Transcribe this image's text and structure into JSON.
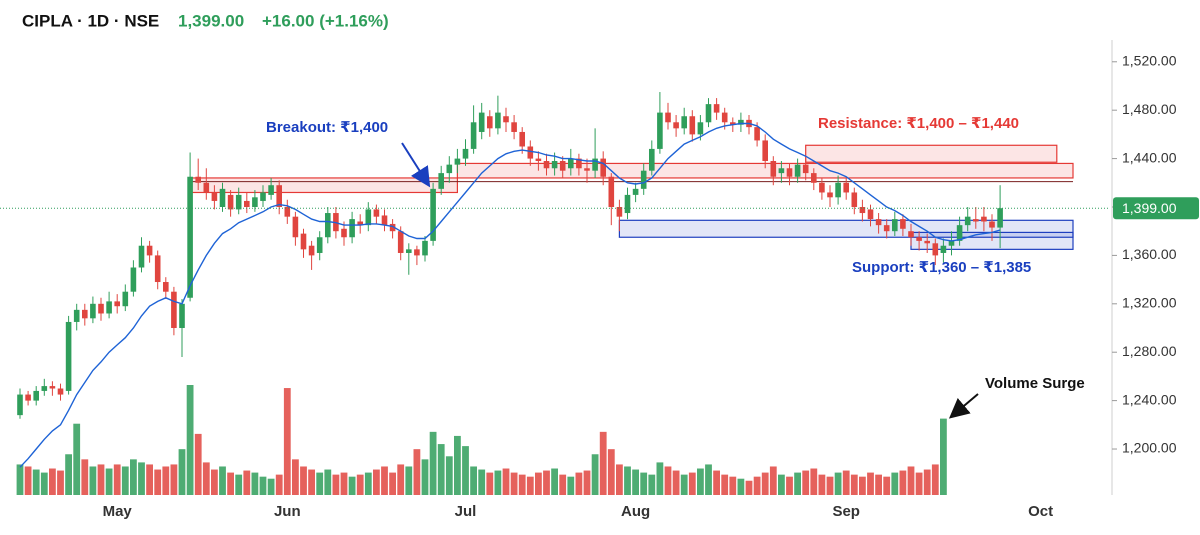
{
  "chart_data": {
    "type": "candlestick",
    "title": "CIPLA · 1D · NSE",
    "last_price": {
      "value": 1399,
      "label": "1,399.00"
    },
    "change": "+16.00 (+1.16%)",
    "up_color": "#2f9e5b",
    "down_color": "#e0453f",
    "ma_color": "#1e63d6",
    "ylim": [
      1162,
      1538
    ],
    "yticks": [
      {
        "value": 1200,
        "label": "1,200.00"
      },
      {
        "value": 1240,
        "label": "1,240.00"
      },
      {
        "value": 1280,
        "label": "1,280.00"
      },
      {
        "value": 1320,
        "label": "1,320.00"
      },
      {
        "value": 1360,
        "label": "1,360.00"
      },
      {
        "value": 1400,
        "label": "1,400.00"
      },
      {
        "value": 1440,
        "label": "1,440.00"
      },
      {
        "value": 1480,
        "label": "1,480.00"
      },
      {
        "value": 1520,
        "label": "1,520.00"
      }
    ],
    "categories": [
      null,
      null,
      null,
      null,
      null,
      null,
      null,
      null,
      null,
      null,
      null,
      null,
      "May",
      null,
      null,
      null,
      null,
      null,
      null,
      null,
      null,
      null,
      null,
      null,
      null,
      null,
      null,
      null,
      null,
      null,
      null,
      null,
      null,
      "Jun",
      null,
      null,
      null,
      null,
      null,
      null,
      null,
      null,
      null,
      null,
      null,
      null,
      null,
      null,
      null,
      null,
      null,
      null,
      null,
      null,
      null,
      "Jul",
      null,
      null,
      null,
      null,
      null,
      null,
      null,
      null,
      null,
      null,
      null,
      null,
      null,
      null,
      null,
      null,
      null,
      null,
      null,
      null,
      "Aug",
      null,
      null,
      null,
      null,
      null,
      null,
      null,
      null,
      null,
      null,
      null,
      null,
      null,
      null,
      null,
      null,
      null,
      null,
      null,
      null,
      null,
      null,
      null,
      null,
      null,
      "Sep",
      null,
      null,
      null,
      null,
      null,
      null,
      null,
      null,
      null,
      null,
      null,
      null,
      null,
      null,
      null,
      null,
      null,
      null,
      null,
      null,
      null,
      null,
      null,
      "Oct",
      null,
      null,
      null,
      null
    ],
    "open": [
      1228,
      1245,
      1240,
      1248,
      1252,
      1250,
      1248,
      1305,
      1315,
      1308,
      1320,
      1312,
      1322,
      1318,
      1330,
      1350,
      1368,
      1360,
      1338,
      1330,
      1300,
      1325,
      1425,
      1420,
      1412,
      1400,
      1410,
      1398,
      1405,
      1400,
      1405,
      1410,
      1418,
      1400,
      1392,
      1378,
      1368,
      1362,
      1375,
      1395,
      1382,
      1375,
      1388,
      1385,
      1398,
      1393,
      1386,
      1380,
      1362,
      1365,
      1360,
      1372,
      1415,
      1428,
      1435,
      1440,
      1448,
      1462,
      1475,
      1465,
      1475,
      1470,
      1462,
      1450,
      1440,
      1438,
      1432,
      1438,
      1432,
      1440,
      1432,
      1430,
      1440,
      1425,
      1400,
      1395,
      1410,
      1415,
      1430,
      1448,
      1478,
      1470,
      1465,
      1475,
      1460,
      1470,
      1485,
      1478,
      1470,
      1468,
      1472,
      1466,
      1455,
      1438,
      1428,
      1432,
      1425,
      1435,
      1428,
      1420,
      1412,
      1408,
      1420,
      1412,
      1400,
      1398,
      1390,
      1385,
      1380,
      1390,
      1380,
      1375,
      1372,
      1370,
      1362,
      1368,
      1372,
      1385,
      1390,
      1392,
      1388,
      1383,
      null,
      null,
      null,
      null,
      null,
      null,
      null,
      null,
      null
    ],
    "high": [
      1250,
      1248,
      1252,
      1258,
      1256,
      1254,
      1310,
      1320,
      1320,
      1326,
      1325,
      1330,
      1328,
      1336,
      1356,
      1375,
      1372,
      1364,
      1342,
      1334,
      1324,
      1445,
      1440,
      1432,
      1418,
      1420,
      1414,
      1416,
      1412,
      1414,
      1418,
      1424,
      1422,
      1406,
      1396,
      1382,
      1372,
      1380,
      1400,
      1400,
      1388,
      1396,
      1394,
      1404,
      1402,
      1398,
      1390,
      1384,
      1370,
      1368,
      1376,
      1420,
      1434,
      1442,
      1448,
      1456,
      1484,
      1486,
      1480,
      1492,
      1482,
      1476,
      1466,
      1455,
      1446,
      1444,
      1445,
      1442,
      1448,
      1444,
      1440,
      1465,
      1446,
      1428,
      1406,
      1416,
      1420,
      1436,
      1455,
      1495,
      1486,
      1476,
      1482,
      1480,
      1476,
      1490,
      1490,
      1482,
      1474,
      1478,
      1476,
      1470,
      1460,
      1442,
      1438,
      1436,
      1440,
      1440,
      1432,
      1424,
      1418,
      1426,
      1424,
      1416,
      1406,
      1402,
      1395,
      1390,
      1396,
      1394,
      1386,
      1380,
      1378,
      1374,
      1374,
      1380,
      1392,
      1400,
      1400,
      1400,
      1394,
      1418,
      null,
      null,
      null,
      null,
      null,
      null,
      null,
      null,
      null
    ],
    "low": [
      1225,
      1236,
      1236,
      1244,
      1244,
      1240,
      1245,
      1298,
      1302,
      1304,
      1306,
      1308,
      1312,
      1314,
      1326,
      1346,
      1354,
      1332,
      1324,
      1294,
      1276,
      1322,
      1414,
      1406,
      1398,
      1396,
      1392,
      1394,
      1395,
      1396,
      1400,
      1406,
      1394,
      1386,
      1368,
      1358,
      1348,
      1356,
      1370,
      1374,
      1368,
      1370,
      1378,
      1380,
      1386,
      1380,
      1374,
      1356,
      1344,
      1352,
      1355,
      1368,
      1410,
      1420,
      1428,
      1434,
      1444,
      1456,
      1458,
      1460,
      1462,
      1456,
      1444,
      1434,
      1430,
      1426,
      1426,
      1424,
      1426,
      1426,
      1420,
      1424,
      1418,
      1385,
      1380,
      1390,
      1404,
      1410,
      1426,
      1444,
      1464,
      1458,
      1460,
      1454,
      1455,
      1466,
      1472,
      1464,
      1462,
      1462,
      1460,
      1450,
      1432,
      1418,
      1420,
      1418,
      1420,
      1422,
      1414,
      1406,
      1400,
      1402,
      1406,
      1394,
      1388,
      1384,
      1378,
      1374,
      1376,
      1376,
      1368,
      1364,
      1362,
      1352,
      1354,
      1360,
      1368,
      1380,
      1382,
      1380,
      1372,
      1366,
      null,
      null,
      null,
      null,
      null,
      null,
      null,
      null,
      null
    ],
    "close": [
      1245,
      1240,
      1248,
      1252,
      1250,
      1245,
      1305,
      1315,
      1308,
      1320,
      1312,
      1322,
      1318,
      1330,
      1350,
      1368,
      1360,
      1338,
      1330,
      1300,
      1320,
      1425,
      1420,
      1412,
      1405,
      1415,
      1398,
      1410,
      1400,
      1408,
      1412,
      1418,
      1400,
      1392,
      1375,
      1365,
      1360,
      1375,
      1395,
      1380,
      1375,
      1390,
      1385,
      1398,
      1392,
      1385,
      1380,
      1362,
      1365,
      1360,
      1372,
      1415,
      1428,
      1435,
      1440,
      1448,
      1470,
      1478,
      1465,
      1478,
      1470,
      1462,
      1450,
      1440,
      1438,
      1432,
      1438,
      1430,
      1440,
      1432,
      1430,
      1440,
      1425,
      1400,
      1392,
      1410,
      1415,
      1430,
      1448,
      1478,
      1470,
      1465,
      1475,
      1460,
      1470,
      1485,
      1478,
      1470,
      1468,
      1472,
      1466,
      1455,
      1438,
      1425,
      1432,
      1425,
      1435,
      1428,
      1420,
      1412,
      1408,
      1420,
      1412,
      1400,
      1395,
      1390,
      1385,
      1380,
      1390,
      1382,
      1375,
      1372,
      1370,
      1360,
      1368,
      1372,
      1385,
      1392,
      1388,
      1388,
      1383,
      1399,
      null,
      null,
      null,
      null,
      null,
      null,
      null,
      null,
      null
    ],
    "volume": [
      30,
      28,
      25,
      22,
      26,
      24,
      40,
      70,
      35,
      28,
      30,
      26,
      30,
      28,
      35,
      32,
      30,
      25,
      28,
      30,
      45,
      108,
      60,
      32,
      25,
      28,
      22,
      20,
      24,
      22,
      18,
      16,
      20,
      105,
      35,
      28,
      25,
      22,
      25,
      20,
      22,
      18,
      20,
      22,
      25,
      28,
      22,
      30,
      28,
      45,
      35,
      62,
      50,
      38,
      58,
      48,
      28,
      25,
      22,
      24,
      26,
      22,
      20,
      18,
      22,
      24,
      26,
      20,
      18,
      22,
      24,
      40,
      62,
      45,
      30,
      28,
      25,
      22,
      20,
      32,
      28,
      24,
      20,
      22,
      26,
      30,
      24,
      20,
      18,
      16,
      14,
      18,
      22,
      28,
      20,
      18,
      22,
      24,
      26,
      20,
      18,
      22,
      24,
      20,
      18,
      22,
      20,
      18,
      22,
      24,
      28,
      22,
      25,
      30,
      75,
      null,
      null,
      null,
      null,
      null,
      null,
      null,
      null,
      null,
      null,
      null,
      null,
      null,
      null,
      null,
      null
    ],
    "ma": [
      1185,
      1192,
      1200,
      1208,
      1215,
      1220,
      1232,
      1245,
      1255,
      1265,
      1272,
      1280,
      1286,
      1292,
      1300,
      1310,
      1318,
      1322,
      1325,
      1322,
      1320,
      1335,
      1348,
      1360,
      1370,
      1378,
      1382,
      1387,
      1390,
      1393,
      1396,
      1400,
      1402,
      1401,
      1398,
      1394,
      1390,
      1388,
      1388,
      1387,
      1385,
      1385,
      1385,
      1386,
      1386,
      1385,
      1384,
      1380,
      1376,
      1374,
      1374,
      1380,
      1388,
      1396,
      1404,
      1412,
      1420,
      1428,
      1434,
      1440,
      1444,
      1446,
      1447,
      1446,
      1445,
      1443,
      1442,
      1440,
      1440,
      1439,
      1438,
      1438,
      1436,
      1430,
      1424,
      1420,
      1419,
      1420,
      1424,
      1432,
      1440,
      1446,
      1452,
      1455,
      1458,
      1462,
      1465,
      1467,
      1468,
      1469,
      1469,
      1467,
      1462,
      1456,
      1452,
      1448,
      1445,
      1442,
      1438,
      1434,
      1430,
      1428,
      1425,
      1420,
      1415,
      1410,
      1405,
      1400,
      1397,
      1393,
      1388,
      1384,
      1380,
      1375,
      1373,
      1372,
      1373,
      1375,
      1377,
      1378,
      1379,
      1381,
      null,
      null,
      null,
      null,
      null,
      null,
      null,
      null,
      null
    ],
    "zones": [
      {
        "start": 21,
        "end": 54,
        "low": 1412,
        "high": 1424,
        "color": "#e53935"
      },
      {
        "start": 54,
        "end": 130,
        "low": 1424,
        "high": 1436,
        "color": "#e53935"
      },
      {
        "start": 97,
        "end": 128,
        "low": 1437,
        "high": 1451,
        "color": "#e53935"
      },
      {
        "start": 74,
        "end": 130,
        "low": 1375,
        "high": 1389,
        "color": "#1e3fbf"
      },
      {
        "start": 110,
        "end": 130,
        "low": 1365,
        "high": 1379,
        "color": "#1e3fbf"
      }
    ],
    "levels": [
      {
        "value": 1421,
        "start": 21,
        "end": 130,
        "color": "#7a1f1f"
      }
    ],
    "annotations": [
      "Breakout: ₹1,400",
      "Resistance: ₹1,400 – ₹1,440",
      "Support: ₹1,360 – ₹1,385",
      "Volume Surge"
    ]
  }
}
